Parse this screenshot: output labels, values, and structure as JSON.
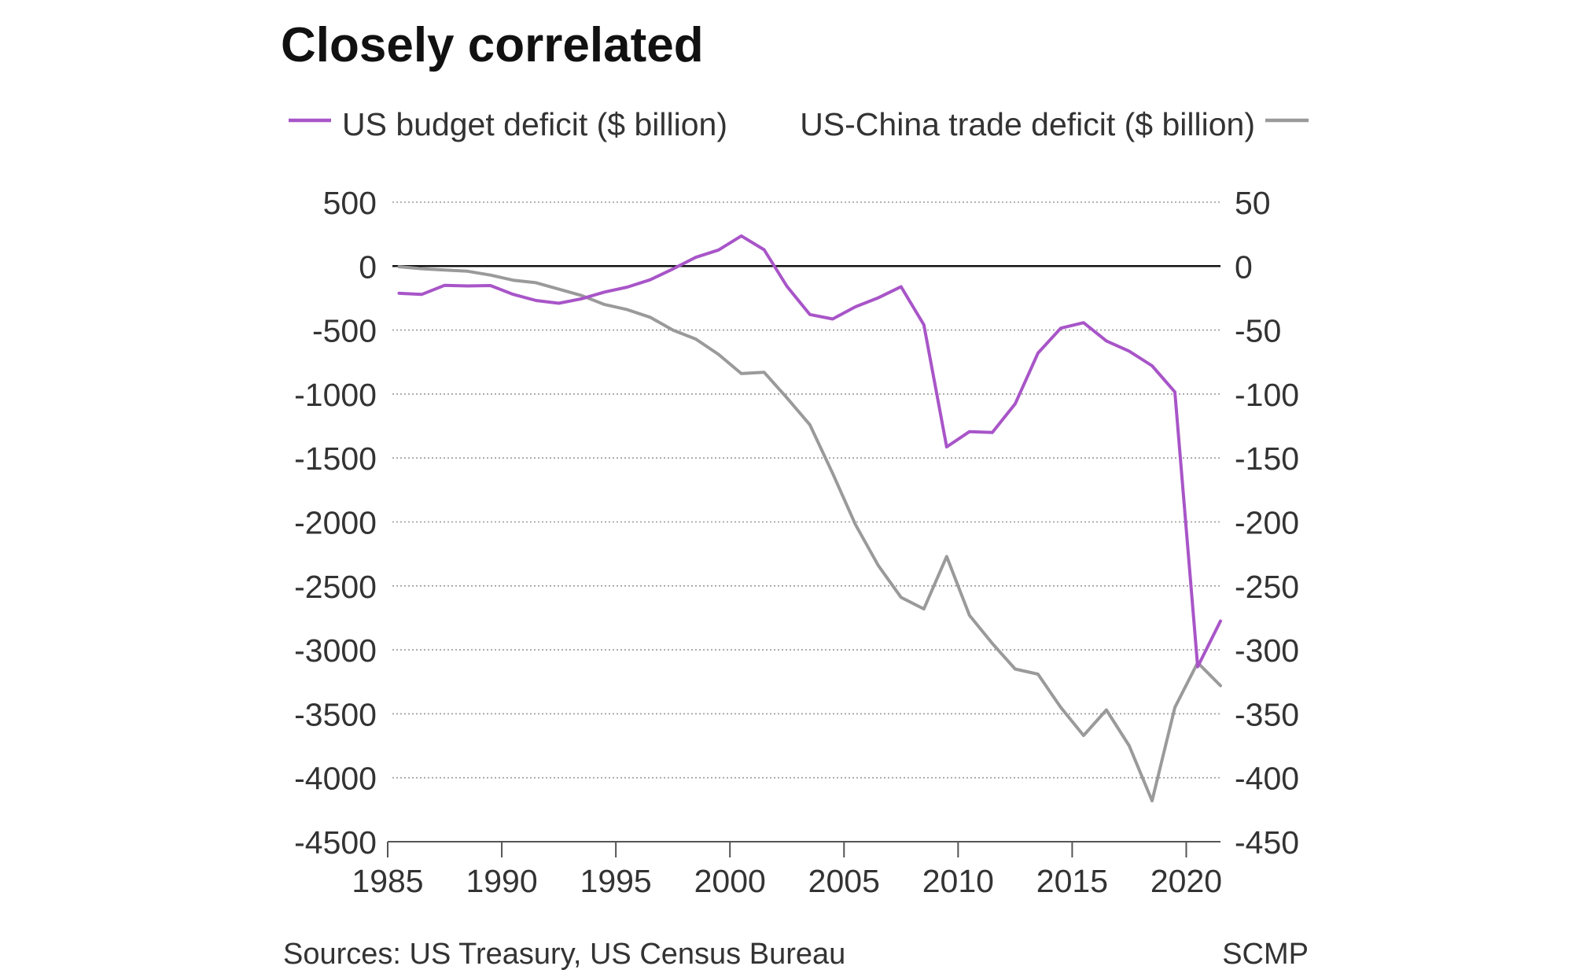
{
  "chart_data": {
    "type": "line",
    "title": "Closely correlated",
    "x_ticks": [
      "1985",
      "1990",
      "1995",
      "2000",
      "2005",
      "2010",
      "2015",
      "2020"
    ],
    "xlim": [
      1985,
      2021.5
    ],
    "left_axis": {
      "ylim": [
        -4500,
        500
      ],
      "ticks": [
        "500",
        "0",
        "-500",
        "-1000",
        "-1500",
        "-2000",
        "-2500",
        "-3000",
        "-3500",
        "-4000",
        "-4500"
      ]
    },
    "right_axis": {
      "ylim": [
        -450,
        50
      ],
      "ticks": [
        "50",
        "0",
        "-50",
        "-100",
        "-150",
        "-200",
        "-250",
        "-300",
        "-350",
        "-400",
        "-450"
      ]
    },
    "grid": true,
    "legend_position": "top",
    "series": [
      {
        "name": "US budget deficit ($ billion)",
        "axis": "left",
        "color": "#a855c8",
        "x": [
          1985.5,
          1986.5,
          1987.5,
          1988.5,
          1989.5,
          1990.5,
          1991.5,
          1992.5,
          1993.5,
          1994.5,
          1995.5,
          1996.5,
          1997.5,
          1998.5,
          1999.5,
          2000.5,
          2001.5,
          2002.5,
          2003.5,
          2004.5,
          2005.5,
          2006.5,
          2007.5,
          2008.5,
          2009.5,
          2010.5,
          2011.5,
          2012.5,
          2013.5,
          2014.5,
          2015.5,
          2016.5,
          2017.5,
          2018.5,
          2019.5,
          2020.5,
          2021.5
        ],
        "values": [
          -212,
          -221,
          -150,
          -155,
          -152,
          -221,
          -269,
          -290,
          -255,
          -203,
          -164,
          -107,
          -22,
          69,
          126,
          236,
          128,
          -158,
          -378,
          -413,
          -318,
          -248,
          -161,
          -459,
          -1413,
          -1294,
          -1300,
          -1077,
          -680,
          -485,
          -442,
          -585,
          -665,
          -779,
          -984,
          -3132,
          -2775
        ]
      },
      {
        "name": "US-China trade deficit ($ billion)",
        "axis": "right",
        "color": "#9a9a9a",
        "x": [
          1985.5,
          1986.5,
          1987.5,
          1988.5,
          1989.5,
          1990.5,
          1991.5,
          1992.5,
          1993.5,
          1994.5,
          1995.5,
          1996.5,
          1997.5,
          1998.5,
          1999.5,
          2000.5,
          2001.5,
          2002.5,
          2003.5,
          2004.5,
          2005.5,
          2006.5,
          2007.5,
          2008.5,
          2009.5,
          2010.5,
          2011.5,
          2012.5,
          2013.5,
          2014.5,
          2015.5,
          2016.5,
          2017.5,
          2018.5,
          2019.5,
          2020.5,
          2021.5
        ],
        "values": [
          -0.5,
          -2,
          -3,
          -4,
          -7,
          -11,
          -13,
          -18,
          -23,
          -30,
          -34,
          -40,
          -50,
          -57,
          -69,
          -84,
          -83,
          -103,
          -124,
          -162,
          -202,
          -234,
          -259,
          -268,
          -227,
          -273,
          -295,
          -315,
          -319,
          -345,
          -367,
          -347,
          -375,
          -418,
          -345,
          -310,
          -328
        ]
      }
    ],
    "source": "Sources: US Treasury, US Census Bureau",
    "credit": "SCMP"
  }
}
